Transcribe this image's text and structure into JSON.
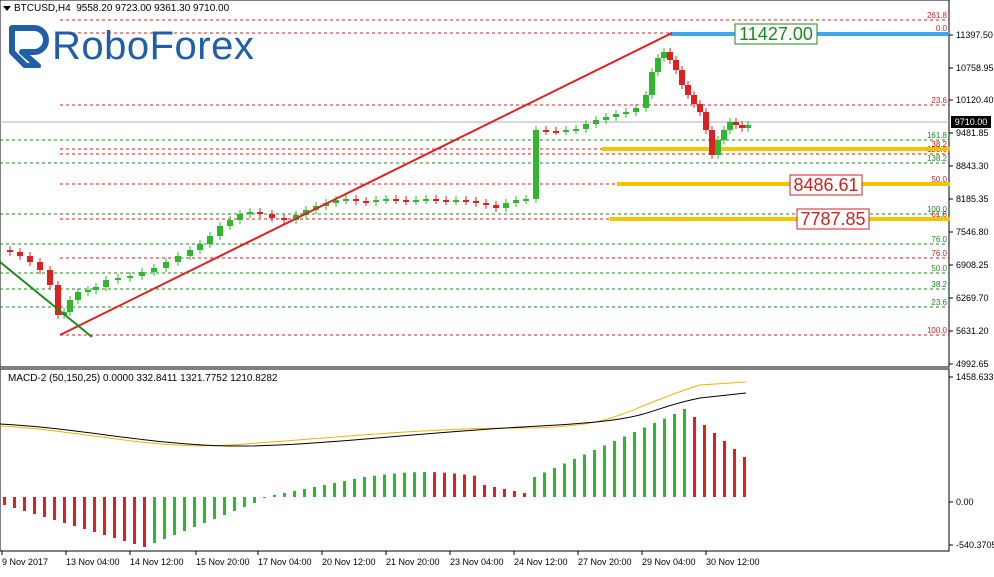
{
  "header": {
    "symbol": "BTCUSD,H4",
    "ohlc": "9558.20 9723.00 9361.30 9710.00"
  },
  "logo": {
    "text": "RoboForex",
    "color": "#1f5fa8"
  },
  "price_axis": [
    "11397.50",
    "10758.95",
    "10120.40",
    "9481.85",
    "8843.30",
    "8185.35",
    "7546.80",
    "6908.25",
    "6269.70",
    "5631.20",
    "4992.65"
  ],
  "current_price": "9710.00",
  "fib_levels": {
    "top_red": [
      "261.8",
      "0.0",
      "23.6",
      "38.2",
      "50.0",
      "61.8",
      "76.0",
      "100.0"
    ],
    "green": [
      "161.8",
      "138.2",
      "100.0",
      "76.0",
      "50.0",
      "38.2",
      "23.6"
    ],
    "extra_red": [
      "123.6"
    ]
  },
  "target_labels": [
    {
      "text": "11427.00",
      "style": "green"
    },
    {
      "text": "8486.61",
      "style": "red"
    },
    {
      "text": "7787.85",
      "style": "red"
    }
  ],
  "macd": {
    "label": "MACD-2 (50,150,25) 0.0000 332.8411 1321.7752 1210.8282",
    "axis": [
      "1458.6333",
      "0.00",
      "-540.3705"
    ]
  },
  "time_axis": [
    "9 Nov 2017",
    "13 Nov 04:00",
    "14 Nov 12:00",
    "15 Nov 20:00",
    "17 Nov 04:00",
    "20 Nov 12:00",
    "21 Nov 20:00",
    "23 Nov 04:00",
    "24 Nov 12:00",
    "27 Nov 20:00",
    "29 Nov 04:00",
    "30 Nov 12:00"
  ],
  "colors": {
    "up": "#2db82d",
    "down": "#e02020",
    "trend": "#e02020",
    "green_line": "#1a8a1a",
    "signal": "#e8b800",
    "macd_line": "#000000",
    "blue_zone": "#3aa7f0",
    "yellow_zone": "#f5c400"
  }
}
